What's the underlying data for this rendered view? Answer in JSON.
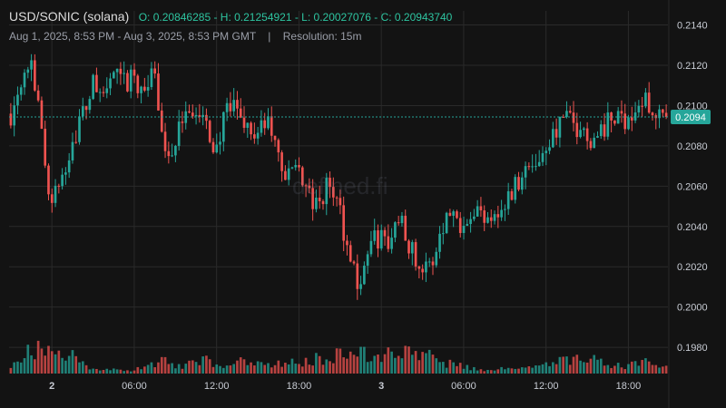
{
  "header": {
    "pair": "USD/SONIC (solana)",
    "ohlc": "O: 0.20846285 - H: 0.21254921 - L: 0.20027076 - C: 0.20943740",
    "range": "Aug 1, 2025, 8:53 PM - Aug 3, 2025, 8:53 PM GMT",
    "separator": "|",
    "resolution": "Resolution: 15m"
  },
  "watermark": "defined.fi",
  "colors": {
    "up": "#26a69a",
    "down": "#ef5350",
    "bg": "#131313",
    "grid": "#2a2a2a",
    "price_tag": "#26a69a"
  },
  "chart_data": {
    "type": "candlestick",
    "y_ticks": [
      "0.2140",
      "0.2120",
      "0.2100",
      "0.2080",
      "0.2060",
      "0.2040",
      "0.2020",
      "0.2000",
      "0.1980"
    ],
    "ylim": [
      0.1967,
      0.2147
    ],
    "x_ticks": [
      "2",
      "06:00",
      "12:00",
      "18:00",
      "3",
      "06:00",
      "12:00",
      "18:00"
    ],
    "x_tick_hours": [
      3.12,
      9.12,
      15.12,
      21.12,
      27.12,
      33.12,
      39.12,
      45.12
    ],
    "last_price": 0.2094374,
    "last_price_label": "0.2094",
    "close_path": [
      [
        0,
        0.2096
      ],
      [
        1,
        0.2115
      ],
      [
        2,
        0.2125
      ],
      [
        3,
        0.2085
      ],
      [
        4,
        0.205
      ],
      [
        5,
        0.2065
      ],
      [
        6,
        0.2082
      ],
      [
        7,
        0.2095
      ],
      [
        8,
        0.211
      ],
      [
        9,
        0.2105
      ],
      [
        10,
        0.2115
      ],
      [
        11,
        0.211
      ],
      [
        12,
        0.2113
      ],
      [
        13,
        0.2108
      ],
      [
        14,
        0.2115
      ],
      [
        15,
        0.208
      ],
      [
        16,
        0.2075
      ],
      [
        17,
        0.2102
      ],
      [
        18,
        0.2095
      ],
      [
        19,
        0.209
      ],
      [
        20,
        0.2078
      ],
      [
        21,
        0.2095
      ],
      [
        22,
        0.21
      ],
      [
        23,
        0.209
      ],
      [
        24,
        0.2085
      ],
      [
        25,
        0.2092
      ],
      [
        26,
        0.2078
      ],
      [
        27,
        0.2062
      ],
      [
        28,
        0.2073
      ],
      [
        29,
        0.2055
      ],
      [
        30,
        0.2048
      ],
      [
        31,
        0.2062
      ],
      [
        32,
        0.205
      ],
      [
        33,
        0.2027
      ],
      [
        34,
        0.201
      ],
      [
        35,
        0.203
      ],
      [
        36,
        0.2035
      ],
      [
        37,
        0.203
      ],
      [
        38,
        0.2048
      ],
      [
        39,
        0.203
      ],
      [
        40,
        0.202
      ],
      [
        41,
        0.2018
      ],
      [
        42,
        0.204
      ],
      [
        43,
        0.2048
      ],
      [
        44,
        0.2042
      ],
      [
        45,
        0.205
      ],
      [
        46,
        0.2045
      ],
      [
        47,
        0.2048
      ],
      [
        48,
        0.2048
      ],
      [
        49,
        0.2058
      ],
      [
        50,
        0.2068
      ],
      [
        51,
        0.207
      ],
      [
        52,
        0.2078
      ],
      [
        53,
        0.2086
      ],
      [
        54,
        0.2094
      ],
      [
        55,
        0.209
      ],
      [
        56,
        0.2087
      ],
      [
        57,
        0.2083
      ],
      [
        58,
        0.209
      ],
      [
        59,
        0.2093
      ],
      [
        60,
        0.2094
      ],
      [
        61,
        0.2097
      ],
      [
        62,
        0.2102
      ],
      [
        63,
        0.2098
      ],
      [
        64,
        0.2094
      ]
    ],
    "volume_profile": [
      [
        0,
        4
      ],
      [
        1,
        8
      ],
      [
        2,
        12
      ],
      [
        3,
        14
      ],
      [
        4,
        10
      ],
      [
        5,
        8
      ],
      [
        6,
        9
      ],
      [
        7,
        5
      ],
      [
        8,
        3
      ],
      [
        9,
        2
      ],
      [
        10,
        2
      ],
      [
        11,
        1.5
      ],
      [
        12,
        2
      ],
      [
        13,
        3
      ],
      [
        14,
        5
      ],
      [
        15,
        8
      ],
      [
        16,
        5
      ],
      [
        17,
        4
      ],
      [
        18,
        6
      ],
      [
        19,
        7
      ],
      [
        20,
        5
      ],
      [
        21,
        4
      ],
      [
        22,
        7
      ],
      [
        23,
        6
      ],
      [
        24,
        5
      ],
      [
        25,
        4
      ],
      [
        26,
        5
      ],
      [
        27,
        6
      ],
      [
        28,
        5
      ],
      [
        29,
        6
      ],
      [
        30,
        8
      ],
      [
        31,
        9
      ],
      [
        32,
        10
      ],
      [
        33,
        11
      ],
      [
        34,
        12
      ],
      [
        35,
        9
      ],
      [
        36,
        8
      ],
      [
        37,
        10
      ],
      [
        38,
        9
      ],
      [
        39,
        12
      ],
      [
        40,
        13
      ],
      [
        41,
        10
      ],
      [
        42,
        6
      ],
      [
        43,
        5
      ],
      [
        44,
        4
      ],
      [
        45,
        3
      ],
      [
        46,
        2
      ],
      [
        47,
        2
      ],
      [
        48,
        3
      ],
      [
        49,
        2
      ],
      [
        50,
        3
      ],
      [
        51,
        3
      ],
      [
        52,
        4
      ],
      [
        53,
        5
      ],
      [
        54,
        7
      ],
      [
        55,
        8
      ],
      [
        56,
        7
      ],
      [
        57,
        10
      ],
      [
        58,
        4
      ],
      [
        59,
        4
      ],
      [
        60,
        4
      ],
      [
        61,
        5
      ],
      [
        62,
        6
      ],
      [
        63,
        5
      ],
      [
        64,
        3
      ]
    ],
    "n_candles": 192
  }
}
